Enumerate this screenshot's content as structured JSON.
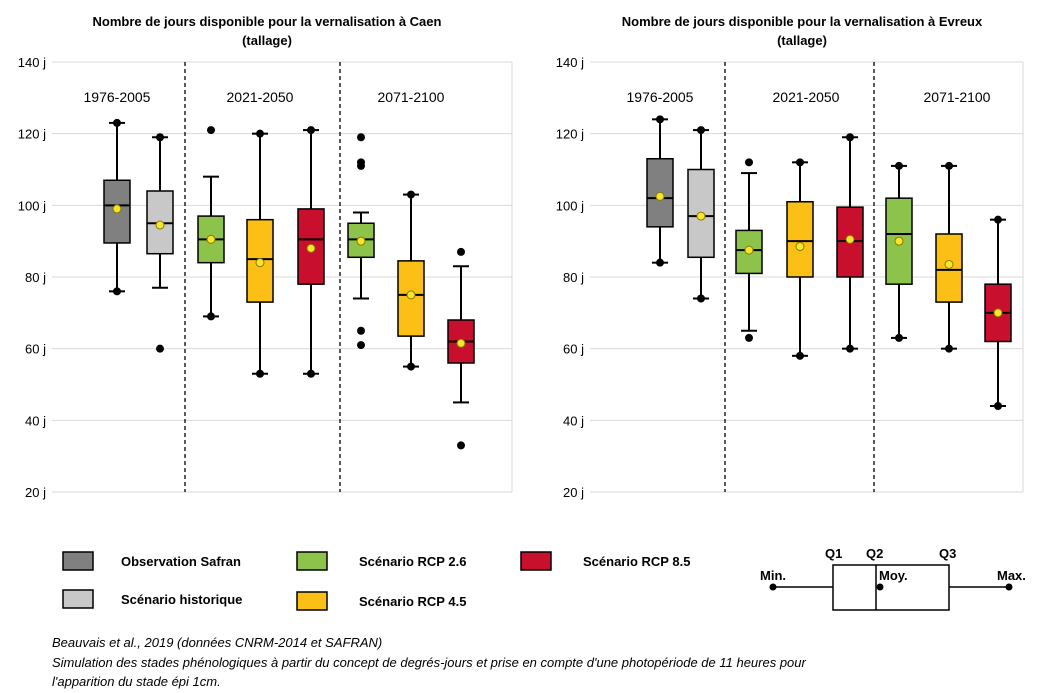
{
  "colors": {
    "Observation Safran": "#808080",
    "Scénario historique": "#c8c8c8",
    "Scénario RCP 2.6": "#8dc34a",
    "Scénario RCP 4.5": "#fbbf16",
    "Scénario RCP 8.5": "#c8102e",
    "mean_marker": "#f5e62c"
  },
  "chart_data": [
    {
      "type": "boxplot",
      "title_lines": [
        "Nombre de jours disponible pour la vernalisation à Caen",
        "(tallage)"
      ],
      "y_tick_labels": [
        "20 j",
        "40 j",
        "60 j",
        "80 j",
        "100 j",
        "120 j",
        "140 j"
      ],
      "ylim": [
        20,
        140
      ],
      "grid": "horizontal",
      "periods": [
        "1976-2005",
        "2021-2050",
        "2071-2100"
      ],
      "boxes": [
        {
          "series": "Observation Safran",
          "period": "1976-2005",
          "min": 76,
          "q1": 89.5,
          "median": 100,
          "q3": 107,
          "max": 123,
          "mean": 99,
          "outliers": [
            76,
            123
          ]
        },
        {
          "series": "Scénario historique",
          "period": "1976-2005",
          "min": 77,
          "q1": 86.5,
          "median": 95,
          "q3": 104,
          "max": 119,
          "mean": 94.5,
          "outliers": [
            60,
            119
          ]
        },
        {
          "series": "Scénario RCP 2.6",
          "period": "2021-2050",
          "min": 69,
          "q1": 84,
          "median": 90.5,
          "q3": 97,
          "max": 108,
          "mean": 90.5,
          "outliers": [
            69,
            121
          ]
        },
        {
          "series": "Scénario RCP 4.5",
          "period": "2021-2050",
          "min": 53,
          "q1": 73,
          "median": 85,
          "q3": 96,
          "max": 120,
          "mean": 84,
          "outliers": [
            53,
            120
          ]
        },
        {
          "series": "Scénario RCP 8.5",
          "period": "2021-2050",
          "min": 53,
          "q1": 78,
          "median": 90.5,
          "q3": 99,
          "max": 121,
          "mean": 88,
          "outliers": [
            53,
            121
          ]
        },
        {
          "series": "Scénario RCP 2.6",
          "period": "2071-2100",
          "min": 74,
          "q1": 85.5,
          "median": 90.5,
          "q3": 95,
          "max": 98,
          "mean": 90,
          "outliers": [
            61,
            65,
            111,
            112,
            119
          ]
        },
        {
          "series": "Scénario RCP 4.5",
          "period": "2071-2100",
          "min": 55,
          "q1": 63.5,
          "median": 75,
          "q3": 84.5,
          "max": 103,
          "mean": 75,
          "outliers": [
            55,
            103
          ]
        },
        {
          "series": "Scénario RCP 8.5",
          "period": "2071-2100",
          "min": 45,
          "q1": 56,
          "median": 62,
          "q3": 68,
          "max": 83,
          "mean": 61.5,
          "outliers": [
            33,
            87
          ]
        }
      ]
    },
    {
      "type": "boxplot",
      "title_lines": [
        "Nombre de jours disponible pour la vernalisation à Evreux",
        "(tallage)"
      ],
      "y_tick_labels": [
        "20 j",
        "40 j",
        "60 j",
        "80 j",
        "100 j",
        "120 j",
        "140 j"
      ],
      "ylim": [
        20,
        140
      ],
      "grid": "horizontal",
      "periods": [
        "1976-2005",
        "2021-2050",
        "2071-2100"
      ],
      "boxes": [
        {
          "series": "Observation Safran",
          "period": "1976-2005",
          "min": 84,
          "q1": 94,
          "median": 102,
          "q3": 113,
          "max": 124,
          "mean": 102.5,
          "outliers": [
            84,
            124
          ]
        },
        {
          "series": "Scénario historique",
          "period": "1976-2005",
          "min": 74,
          "q1": 85.5,
          "median": 97,
          "q3": 110,
          "max": 121,
          "mean": 97,
          "outliers": [
            74,
            121
          ]
        },
        {
          "series": "Scénario RCP 2.6",
          "period": "2021-2050",
          "min": 65,
          "q1": 81,
          "median": 87.5,
          "q3": 93,
          "max": 109,
          "mean": 87.5,
          "outliers": [
            63,
            112
          ]
        },
        {
          "series": "Scénario RCP 4.5",
          "period": "2021-2050",
          "min": 58,
          "q1": 80,
          "median": 90,
          "q3": 101,
          "max": 112,
          "mean": 88.5,
          "outliers": [
            58,
            112
          ]
        },
        {
          "series": "Scénario RCP 8.5",
          "period": "2021-2050",
          "min": 60,
          "q1": 80,
          "median": 90,
          "q3": 99.5,
          "max": 119,
          "mean": 90.5,
          "outliers": [
            60,
            119
          ]
        },
        {
          "series": "Scénario RCP 2.6",
          "period": "2071-2100",
          "min": 63,
          "q1": 78,
          "median": 92,
          "q3": 102,
          "max": 111,
          "mean": 90,
          "outliers": [
            63,
            111
          ]
        },
        {
          "series": "Scénario RCP 4.5",
          "period": "2071-2100",
          "min": 60,
          "q1": 73,
          "median": 82,
          "q3": 92,
          "max": 111,
          "mean": 83.5,
          "outliers": [
            60,
            111
          ]
        },
        {
          "series": "Scénario RCP 8.5",
          "period": "2071-2100",
          "min": 44,
          "q1": 62,
          "median": 70,
          "q3": 78,
          "max": 96,
          "mean": 70,
          "outliers": [
            44,
            96
          ]
        }
      ]
    }
  ],
  "legend": {
    "items": [
      "Observation Safran",
      "Scénario historique",
      "Scénario RCP 2.6",
      "Scénario RCP 4.5",
      "Scénario RCP 8.5"
    ],
    "key_labels": {
      "min": "Min.",
      "q1": "Q1",
      "q2": "Q2",
      "q3": "Q3",
      "mean": "Moy.",
      "max": "Max."
    }
  },
  "source": {
    "line1": "Beauvais et al., 2019 (données CNRM-2014 et SAFRAN)",
    "line2": "Simulation des stades phénologiques à partir du concept de degrés-jours et prise en compte d'une photopériode de 11 heures pour",
    "line3": "l'apparition du stade épi 1cm."
  }
}
